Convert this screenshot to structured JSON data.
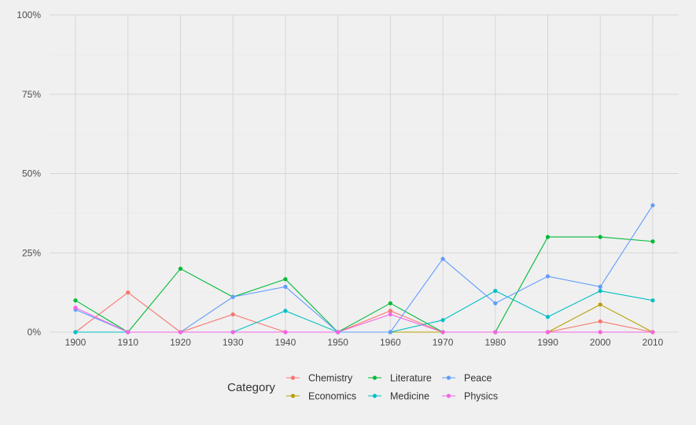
{
  "chart_data": {
    "type": "line",
    "x": [
      1900,
      1910,
      1920,
      1930,
      1940,
      1950,
      1960,
      1970,
      1980,
      1990,
      2000,
      2010
    ],
    "ylim": [
      0,
      1
    ],
    "y_ticks": [
      {
        "value": 0,
        "label": "0%"
      },
      {
        "value": 0.25,
        "label": "25%"
      },
      {
        "value": 0.5,
        "label": "50%"
      },
      {
        "value": 0.75,
        "label": "75%"
      },
      {
        "value": 1,
        "label": "100%"
      }
    ],
    "x_tick_labels": [
      "1900",
      "1910",
      "1920",
      "1930",
      "1940",
      "1950",
      "1960",
      "1970",
      "1980",
      "1990",
      "2000",
      "2010"
    ],
    "grid": true,
    "legend": {
      "title": "Category",
      "position": "bottom"
    },
    "series": [
      {
        "name": "Chemistry",
        "color": "#F8766D",
        "values": [
          0,
          0.125,
          0,
          0.056,
          0,
          0,
          0.067,
          0,
          0,
          0,
          0.034,
          0
        ]
      },
      {
        "name": "Economics",
        "color": "#B79F00",
        "values": [
          null,
          null,
          null,
          null,
          null,
          null,
          0,
          0,
          0,
          0,
          0.087,
          0
        ]
      },
      {
        "name": "Literature",
        "color": "#00BA38",
        "values": [
          0.1,
          0,
          0.2,
          0.111,
          0.167,
          0,
          0.091,
          0,
          0,
          0.3,
          0.3,
          0.286
        ]
      },
      {
        "name": "Medicine",
        "color": "#00BFC4",
        "values": [
          0,
          0,
          0,
          0,
          0.067,
          0,
          0,
          0.038,
          0.13,
          0.048,
          0.13,
          0.1
        ]
      },
      {
        "name": "Peace",
        "color": "#619CFF",
        "values": [
          0.071,
          0,
          0,
          0.111,
          0.143,
          0,
          0,
          0.231,
          0.091,
          0.176,
          0.143,
          0.4
        ]
      },
      {
        "name": "Physics",
        "color": "#F564E3",
        "values": [
          0.077,
          0,
          0,
          0,
          0,
          0,
          0.056,
          0,
          0,
          0,
          0,
          0
        ]
      }
    ]
  }
}
